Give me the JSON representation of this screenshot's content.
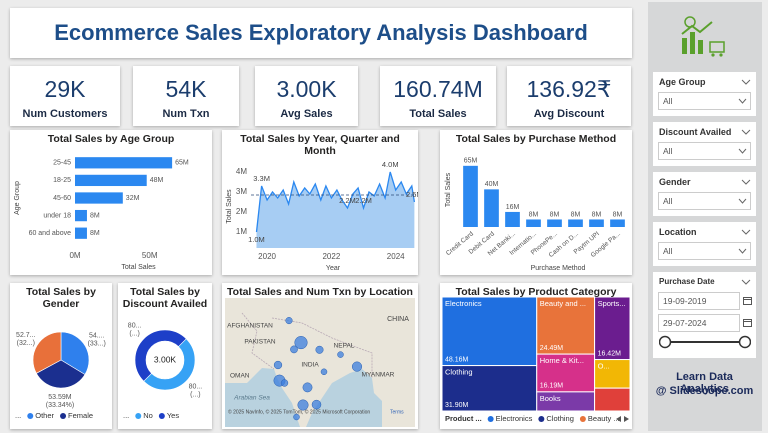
{
  "header": {
    "title": "Ecommerce Sales Exploratory Analysis Dashboard"
  },
  "kpis": [
    {
      "value": "29K",
      "label": "Num Customers"
    },
    {
      "value": "54K",
      "label": "Num Txn"
    },
    {
      "value": "3.00K",
      "label": "Avg Sales"
    },
    {
      "value": "160.74M",
      "label": "Total Sales"
    },
    {
      "value": "136.92₹",
      "label": "Avg Discount"
    }
  ],
  "filters": [
    {
      "label": "Age Group",
      "value": "All"
    },
    {
      "label": "Discount Availed",
      "value": "All"
    },
    {
      "label": "Gender",
      "value": "All"
    },
    {
      "label": "Location",
      "value": "All"
    }
  ],
  "date_filter": {
    "label": "Purchase Date",
    "start": "19-09-2019",
    "end": "29-07-2024"
  },
  "promo": {
    "line1": "Learn Data Analytics",
    "line2": "@ Slidescope.com"
  },
  "chart_data": [
    {
      "type": "bar",
      "orientation": "horizontal",
      "title": "Total Sales by Age Group",
      "y_label": "Age Group",
      "x_label": "Total Sales",
      "categories": [
        "25-45",
        "18-25",
        "45-60",
        "under 18",
        "60 and above"
      ],
      "values": [
        65,
        48,
        32,
        8,
        8
      ],
      "value_labels": [
        "65M",
        "48M",
        "32M",
        "8M",
        "8M"
      ],
      "color": "#2b88f0",
      "xlim": [
        0,
        85
      ],
      "xticks": [
        {
          "value": 0,
          "label": "0M"
        },
        {
          "value": 50,
          "label": "50M"
        }
      ]
    },
    {
      "type": "line",
      "title": "Total Sales by Year, Quarter and Month",
      "y_label": "Total Sales",
      "x_label": "Year",
      "color": "#2b88f0",
      "area_color": "#a7cdf3",
      "x": [
        2019.67,
        2019.83,
        2020.0,
        2020.17,
        2020.33,
        2020.5,
        2020.67,
        2020.83,
        2021.0,
        2021.17,
        2021.33,
        2021.5,
        2021.67,
        2021.83,
        2022.0,
        2022.17,
        2022.33,
        2022.5,
        2022.67,
        2022.83,
        2023.0,
        2023.17,
        2023.33,
        2023.5,
        2023.67,
        2023.83,
        2024.0,
        2024.17,
        2024.33,
        2024.5,
        2024.58
      ],
      "values": [
        1.0,
        3.3,
        2.6,
        3.0,
        2.7,
        3.1,
        2.4,
        3.5,
        2.8,
        3.2,
        2.9,
        3.4,
        2.6,
        3.3,
        2.7,
        3.1,
        2.6,
        2.2,
        2.9,
        3.2,
        2.2,
        3.0,
        2.8,
        3.4,
        2.7,
        4.0,
        3.1,
        3.5,
        2.9,
        3.3,
        2.5
      ],
      "value_labels": [
        "1.0M",
        "3.3M",
        null,
        null,
        null,
        null,
        null,
        null,
        null,
        null,
        null,
        null,
        null,
        null,
        null,
        null,
        null,
        "2.2M",
        null,
        null,
        "2.2M",
        null,
        null,
        null,
        null,
        "4.0M",
        null,
        null,
        null,
        null,
        "2.5M"
      ],
      "reference_line": 2.85,
      "xlim": [
        2019.5,
        2024.6
      ],
      "xticks": [
        2020,
        2022,
        2024
      ],
      "ylim": [
        0.2,
        4.35
      ],
      "yticks": [
        {
          "value": 1,
          "label": "1M"
        },
        {
          "value": 2,
          "label": "2M"
        },
        {
          "value": 3,
          "label": "3M"
        },
        {
          "value": 4,
          "label": "4M"
        }
      ]
    },
    {
      "type": "bar",
      "orientation": "vertical",
      "title": "Total Sales by Purchase Method",
      "y_label": "Total Sales",
      "x_label": "Purchase Method",
      "categories": [
        "Credit Card",
        "Debit Card",
        "Net Banki...",
        "Internatio...",
        "PhonePe...",
        "Cash on D...",
        "Paytm UPI",
        "Google Pa..."
      ],
      "values": [
        65,
        40,
        16,
        8,
        8,
        8,
        8,
        8
      ],
      "value_labels": [
        "65M",
        "40M",
        "16M",
        "8M",
        "8M",
        "8M",
        "8M",
        "8M"
      ],
      "color": "#2b88f0",
      "ylim": [
        0,
        68
      ]
    },
    {
      "type": "pie",
      "title": "Total Sales by Gender",
      "categories": [
        "Other",
        "Female",
        null
      ],
      "values": [
        54,
        53.59,
        52.7
      ],
      "value_labels": [
        "54....",
        "53.59M",
        "52.7..."
      ],
      "percent_labels": [
        "(33...)",
        "(33.34%)",
        "(32...)"
      ],
      "colors": [
        "#2f80ed",
        "#1b2f8f",
        "#e8703a"
      ],
      "legend_title": "..."
    },
    {
      "type": "donut",
      "title": "Total Sales by Discount Availed",
      "categories": [
        "No",
        "Yes"
      ],
      "values": [
        80.4,
        80.3
      ],
      "value_labels": [
        "80...",
        "80..."
      ],
      "percent_labels": [
        "(...)",
        "(...)"
      ],
      "colors": [
        "#36a2f5",
        "#1d3fc8"
      ],
      "center_label": "3.00K",
      "legend_title": "..."
    },
    {
      "type": "map",
      "title": "Total Sales and Num Txn by Location",
      "color": "#3b7ddd",
      "lon": [
        77.2,
        72.9,
        88.4,
        80.3,
        77.6,
        78.5,
        72.6,
        75.8,
        80.9,
        73.9,
        85.1,
        74.8,
        76.3,
        81.8
      ],
      "lat": [
        28.6,
        19.1,
        22.6,
        13.1,
        13.0,
        17.4,
        23.0,
        26.9,
        26.8,
        18.5,
        25.6,
        34.1,
        10.0,
        21.3
      ],
      "sizes": [
        4.2,
        3.8,
        3.2,
        3.0,
        3.5,
        3.1,
        2.6,
        2.4,
        2.5,
        2.3,
        2.0,
        2.2,
        2.0,
        2.0
      ],
      "place_labels": [
        "AFGHANISTAN",
        "PAKISTAN",
        "CHINA",
        "NEPAL",
        "INDIA",
        "OMAN",
        "MYANMAR",
        "Arabian Sea"
      ],
      "attribution": "© 2025 NavInfo, © 2025 TomTom, © 2025 Microsoft Corporation",
      "terms": "Terms"
    },
    {
      "type": "treemap",
      "title": "Total Sales by Product Category",
      "categories": [
        "Electronics",
        "Clothing",
        "Beauty and ...",
        "Home & Kit...",
        "Books",
        "Sports...",
        "O...",
        null
      ],
      "values": [
        48.16,
        31.9,
        24.49,
        16.19,
        8.2,
        16.42,
        7.5,
        6.0
      ],
      "value_labels": [
        "48.16M",
        "31.90M",
        "24.49M",
        "16.19M",
        null,
        "16.42M",
        null,
        null
      ],
      "colors": [
        "#1f6fe0",
        "#1c2d8c",
        "#e8733a",
        "#d6308a",
        "#7b3aa8",
        "#6b1d8f",
        "#f2b705",
        "#e0403a"
      ],
      "legend": {
        "title": "Product ...",
        "labels": [
          "Electronics",
          "Clothing",
          "Beauty ..."
        ]
      }
    }
  ]
}
